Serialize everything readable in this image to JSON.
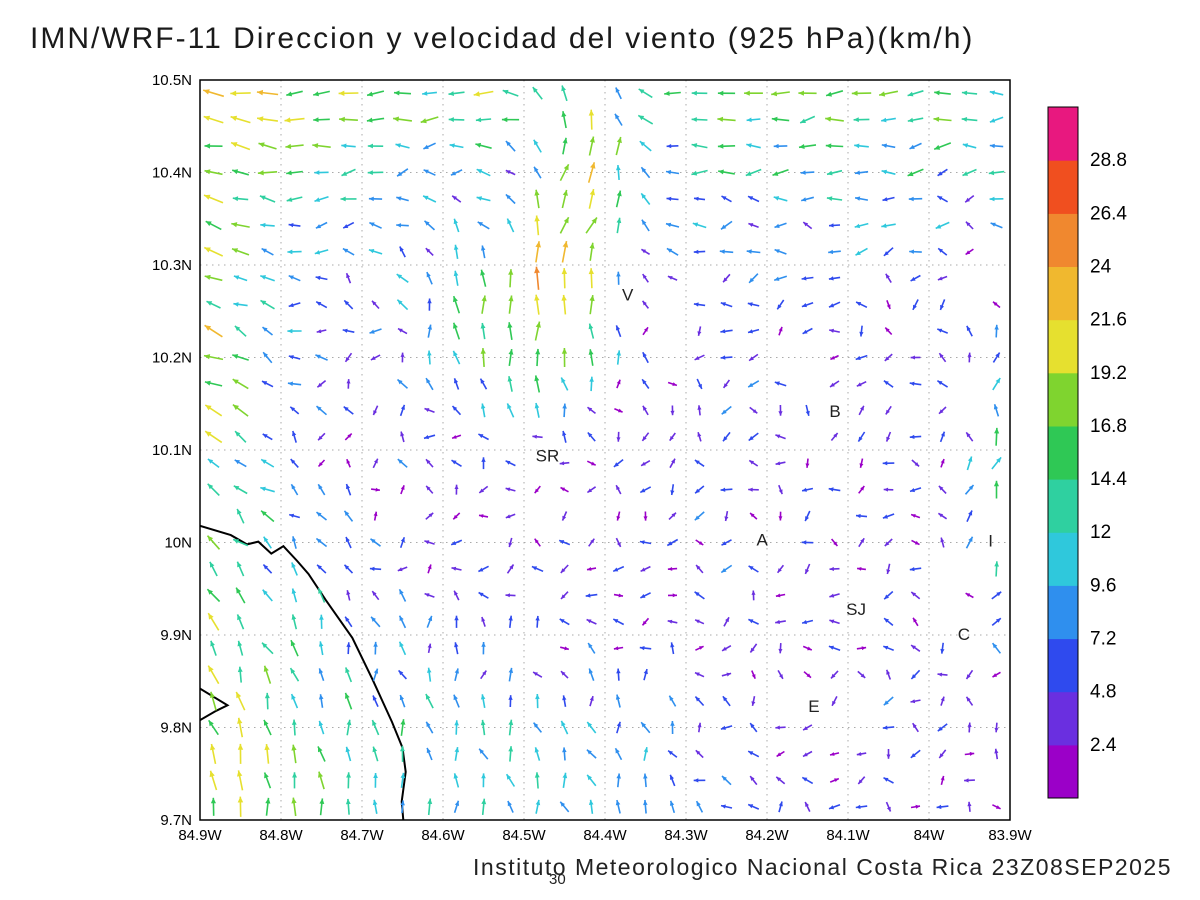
{
  "title": "IMN/WRF-11 Direccion y velocidad del viento (925 hPa)(km/h)",
  "footer": {
    "caption": "Instituto Meteorologico Nacional Costa Rica 23Z08SEP2025",
    "frame_label": "30"
  },
  "chart_data": {
    "type": "vector_field",
    "title": "IMN/WRF-11 Direccion y velocidad del viento (925 hPa)(km/h)",
    "xlabel": "",
    "ylabel": "",
    "legend_position": "right-colorbar",
    "grid": "dotted",
    "axes": {
      "x_tick_labels": [
        "84.9W",
        "84.8W",
        "84.7W",
        "84.6W",
        "84.5W",
        "84.4W",
        "84.3W",
        "84.2W",
        "84.1W",
        "84W",
        "83.9W"
      ],
      "x_tick_values": [
        84.9,
        84.8,
        84.7,
        84.6,
        84.5,
        84.4,
        84.3,
        84.2,
        84.1,
        84.0,
        83.9
      ],
      "y_tick_labels": [
        "10.5N",
        "10.4N",
        "10.3N",
        "10.2N",
        "10.1N",
        "10N",
        "9.9N",
        "9.8N",
        "9.7N"
      ],
      "y_tick_values": [
        10.5,
        10.4,
        10.3,
        10.2,
        10.1,
        10.0,
        9.9,
        9.8,
        9.7
      ],
      "x_range_deg_w": [
        84.9,
        83.9
      ],
      "y_range_deg_n": [
        9.7,
        10.5
      ]
    },
    "colorbar": {
      "levels": [
        2.4,
        4.8,
        7.2,
        9.6,
        12,
        14.4,
        16.8,
        19.2,
        21.6,
        24,
        26.4,
        28.8
      ],
      "colors": [
        "#9b00c8",
        "#6a2fe0",
        "#2f4aee",
        "#2f8fee",
        "#2fc8dc",
        "#2fd0a0",
        "#2fc855",
        "#7fd42f",
        "#e6e02f",
        "#f0b82f",
        "#f0882f",
        "#f04f1f",
        "#e8187f"
      ]
    },
    "stations": [
      {
        "label": "V",
        "lon": 84.372,
        "lat": 10.268
      },
      {
        "label": "B",
        "lon": 84.116,
        "lat": 10.142
      },
      {
        "label": "SR",
        "lon": 84.471,
        "lat": 10.094
      },
      {
        "label": "A",
        "lon": 84.206,
        "lat": 10.003
      },
      {
        "label": "I",
        "lon": 83.924,
        "lat": 10.002
      },
      {
        "label": "SJ",
        "lon": 84.09,
        "lat": 9.928
      },
      {
        "label": "C",
        "lon": 83.957,
        "lat": 9.901
      },
      {
        "label": "E",
        "lon": 84.142,
        "lat": 9.823
      }
    ],
    "coastline": {
      "main": [
        [
          84.9,
          10.018
        ],
        [
          84.862,
          10.008
        ],
        [
          84.842,
          9.998
        ],
        [
          84.828,
          10.001
        ],
        [
          84.812,
          9.988
        ],
        [
          84.797,
          9.996
        ],
        [
          84.78,
          9.98
        ],
        [
          84.766,
          9.966
        ],
        [
          84.745,
          9.938
        ],
        [
          84.712,
          9.897
        ],
        [
          84.687,
          9.852
        ],
        [
          84.663,
          9.806
        ],
        [
          84.65,
          9.778
        ],
        [
          84.646,
          9.752
        ],
        [
          84.651,
          9.72
        ],
        [
          84.649,
          9.7
        ]
      ],
      "spike": [
        [
          84.9,
          9.842
        ],
        [
          84.866,
          9.824
        ],
        [
          84.88,
          9.818
        ],
        [
          84.9,
          9.808
        ]
      ]
    },
    "wind_field": {
      "grid_nx": 30,
      "grid_ny": 28,
      "noise_amplitude_kmh": 4.5,
      "features": [
        {
          "name": "northern-easterlies",
          "type": "gaussian",
          "lon": 84.4,
          "lat": 10.54,
          "sigma_lon": 0.9,
          "sigma_lat": 0.13,
          "u": -15,
          "v": -1
        },
        {
          "name": "northwest-coastal-jet",
          "type": "gaussian",
          "lon": 84.93,
          "lat": 10.22,
          "sigma_lon": 0.1,
          "sigma_lat": 0.28,
          "u": -13,
          "v": 9
        },
        {
          "name": "top-center-updraft",
          "type": "gaussian",
          "lon": 84.5,
          "lat": 10.25,
          "sigma_lon": 0.08,
          "sigma_lat": 0.08,
          "u": 2,
          "v": 22
        },
        {
          "name": "north-streak",
          "type": "gaussian",
          "lon": 84.42,
          "lat": 10.42,
          "sigma_lon": 0.05,
          "sigma_lat": 0.09,
          "u": 18,
          "v": 20
        },
        {
          "name": "southwest-ocean-flow",
          "type": "gaussian",
          "lon": 84.85,
          "lat": 9.7,
          "sigma_lon": 0.18,
          "sigma_lat": 0.2,
          "u": 1,
          "v": 17
        },
        {
          "name": "south-central-flow",
          "type": "gaussian",
          "lon": 84.45,
          "lat": 9.72,
          "sigma_lon": 0.15,
          "sigma_lat": 0.12,
          "u": 0,
          "v": 10
        },
        {
          "name": "east-edge-jet",
          "type": "gaussian",
          "lon": 83.88,
          "lat": 10.06,
          "sigma_lon": 0.05,
          "sigma_lat": 0.11,
          "u": 7,
          "v": 19
        },
        {
          "name": "background-drift",
          "type": "uniform",
          "u": -2,
          "v": -1
        }
      ]
    }
  }
}
